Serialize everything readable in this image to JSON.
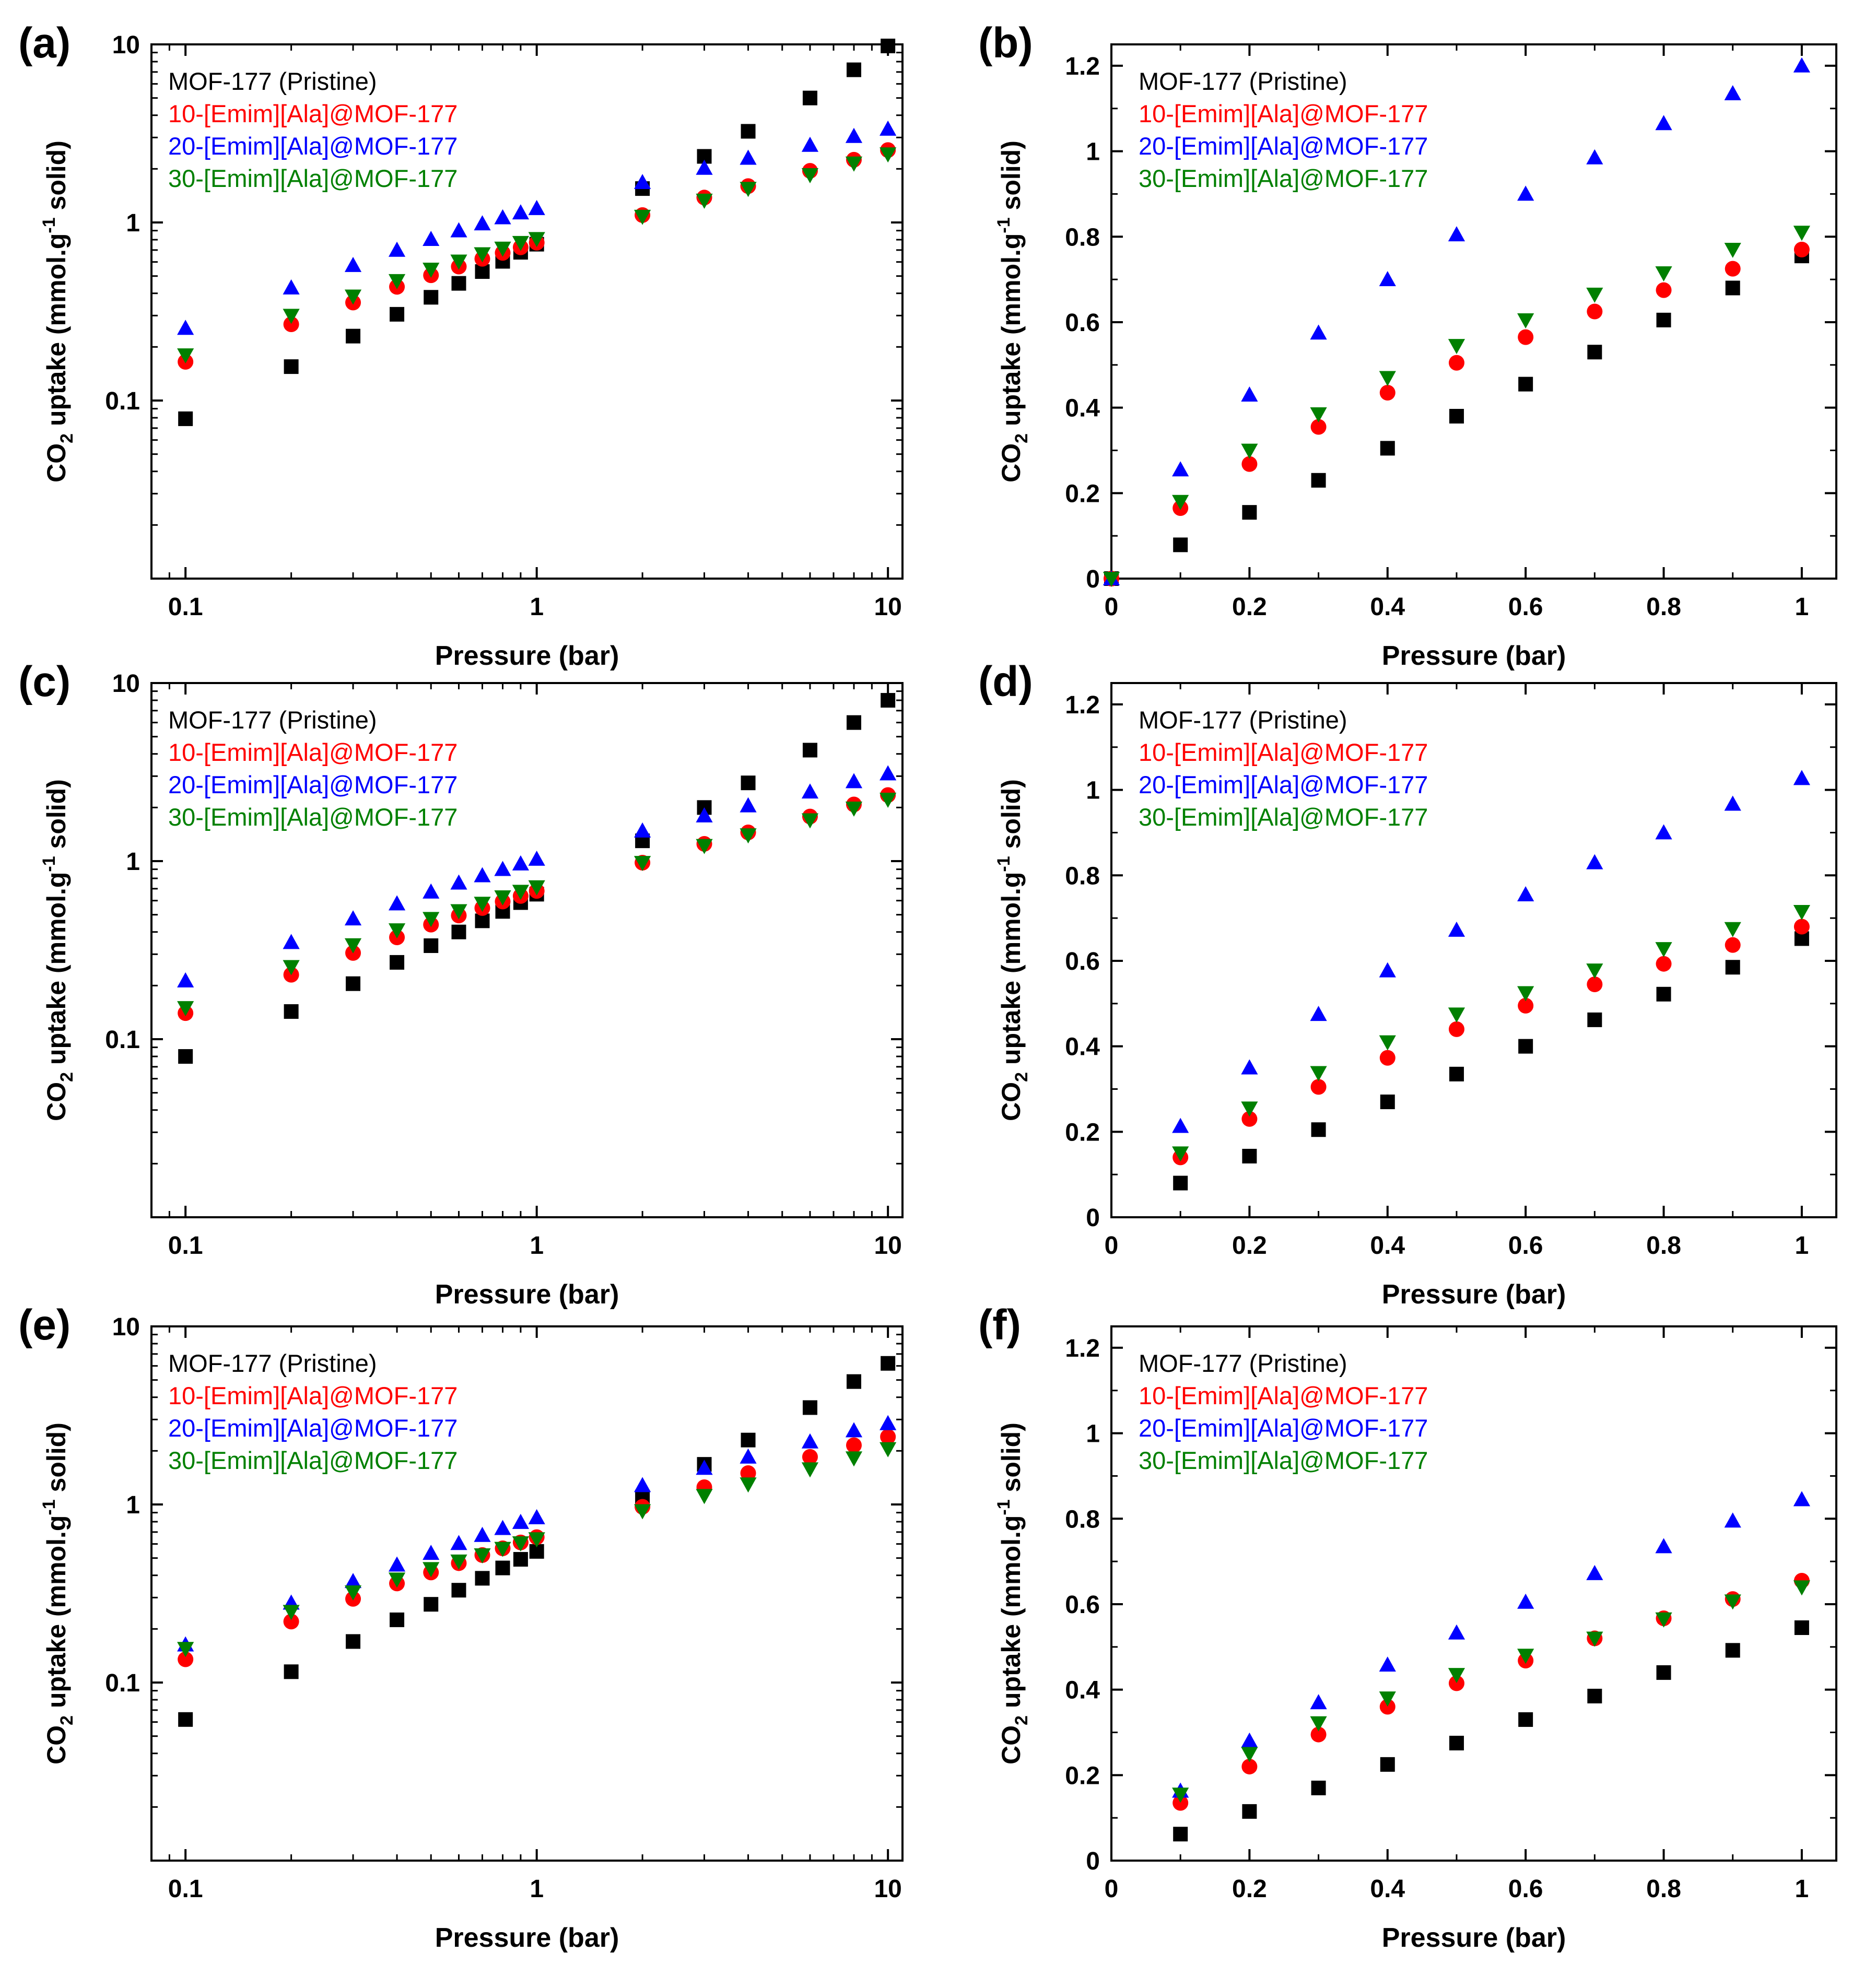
{
  "figure": {
    "xlabel": "Pressure (bar)",
    "ylabel_main": "CO",
    "ylabel_sub2": "2",
    "ylabel_mid": " uptake (mmol.g",
    "ylabel_sup": "-1",
    "ylabel_end": " solid)",
    "colors": {
      "pristine": "#000000",
      "ila10": "#ff0000",
      "ila20": "#0000ff",
      "ila30": "#008000"
    },
    "legend": [
      "MOF-177 (Pristine)",
      "10-[Emim][Ala]@MOF-177",
      "20-[Emim][Ala]@MOF-177",
      "30-[Emim][Ala]@MOF-177"
    ]
  },
  "chart_data": [
    {
      "panel": "(a)",
      "type": "scatter",
      "xscale": "log",
      "yscale": "log",
      "xlim": [
        0.08,
        11
      ],
      "ylim": [
        0.01,
        10
      ],
      "xticks": [
        0.1,
        1,
        10
      ],
      "xtick_labels": [
        "0.1",
        "1",
        "10"
      ],
      "yticks": [
        0.1,
        1,
        10
      ],
      "ytick_labels": [
        "0.1",
        "1",
        "10"
      ],
      "xlabel": "Pressure (bar)",
      "x": [
        0.1,
        0.2,
        0.3,
        0.4,
        0.5,
        0.6,
        0.7,
        0.8,
        0.9,
        1,
        2,
        3,
        4,
        6,
        8,
        10
      ],
      "series": [
        {
          "name": "MOF-177 (Pristine)",
          "marker": "square",
          "color": "#000000",
          "values": [
            0.079,
            0.155,
            0.23,
            0.305,
            0.38,
            0.455,
            0.53,
            0.605,
            0.68,
            0.755,
            1.55,
            2.35,
            3.25,
            5.0,
            7.2,
            9.8
          ]
        },
        {
          "name": "10-[Emim][Ala]@MOF-177",
          "marker": "circle",
          "color": "#ff0000",
          "values": [
            0.165,
            0.268,
            0.355,
            0.435,
            0.505,
            0.565,
            0.625,
            0.675,
            0.725,
            0.77,
            1.1,
            1.38,
            1.6,
            1.95,
            2.25,
            2.55
          ]
        },
        {
          "name": "20-[Emim][Ala]@MOF-177",
          "marker": "triangle-up",
          "color": "#0000ff",
          "values": [
            0.255,
            0.43,
            0.575,
            0.7,
            0.805,
            0.9,
            0.985,
            1.065,
            1.135,
            1.2,
            1.68,
            2.02,
            2.3,
            2.72,
            3.05,
            3.35
          ]
        },
        {
          "name": "30-[Emim][Ala]@MOF-177",
          "marker": "triangle-down",
          "color": "#008000",
          "values": [
            0.18,
            0.3,
            0.385,
            0.47,
            0.545,
            0.605,
            0.665,
            0.715,
            0.77,
            0.81,
            1.08,
            1.33,
            1.55,
            1.85,
            2.15,
            2.42
          ]
        }
      ],
      "legend": [
        "MOF-177 (Pristine)",
        "10-[Emim][Ala]@MOF-177",
        "20-[Emim][Ala]@MOF-177",
        "30-[Emim][Ala]@MOF-177"
      ]
    },
    {
      "panel": "(b)",
      "type": "scatter",
      "xscale": "linear",
      "yscale": "linear",
      "xlim": [
        0,
        1.05
      ],
      "ylim": [
        0,
        1.25
      ],
      "xticks": [
        0,
        0.2,
        0.4,
        0.6,
        0.8,
        1
      ],
      "xtick_labels": [
        "0",
        "0.2",
        "0.4",
        "0.6",
        "0.8",
        "1"
      ],
      "yticks": [
        0,
        0.2,
        0.4,
        0.6,
        0.8,
        1,
        1.2
      ],
      "ytick_labels": [
        "0",
        "0.2",
        "0.4",
        "0.6",
        "0.8",
        "1",
        "1.2"
      ],
      "xlabel": "Pressure (bar)",
      "x": [
        0,
        0.1,
        0.2,
        0.3,
        0.4,
        0.5,
        0.6,
        0.7,
        0.8,
        0.9,
        1
      ],
      "series": [
        {
          "name": "MOF-177 (Pristine)",
          "marker": "square",
          "color": "#000000",
          "values": [
            0,
            0.079,
            0.155,
            0.23,
            0.305,
            0.38,
            0.455,
            0.53,
            0.605,
            0.68,
            0.755
          ]
        },
        {
          "name": "10-[Emim][Ala]@MOF-177",
          "marker": "circle",
          "color": "#ff0000",
          "values": [
            0,
            0.165,
            0.268,
            0.355,
            0.435,
            0.505,
            0.565,
            0.625,
            0.675,
            0.725,
            0.77
          ]
        },
        {
          "name": "20-[Emim][Ala]@MOF-177",
          "marker": "triangle-up",
          "color": "#0000ff",
          "values": [
            0,
            0.255,
            0.43,
            0.575,
            0.7,
            0.805,
            0.9,
            0.985,
            1.065,
            1.135,
            1.2
          ]
        },
        {
          "name": "30-[Emim][Ala]@MOF-177",
          "marker": "triangle-down",
          "color": "#008000",
          "values": [
            0,
            0.18,
            0.3,
            0.385,
            0.47,
            0.545,
            0.605,
            0.665,
            0.715,
            0.77,
            0.81
          ]
        }
      ],
      "legend": [
        "MOF-177 (Pristine)",
        "10-[Emim][Ala]@MOF-177",
        "20-[Emim][Ala]@MOF-177",
        "30-[Emim][Ala]@MOF-177"
      ]
    },
    {
      "panel": "(c)",
      "type": "scatter",
      "xscale": "log",
      "yscale": "log",
      "xlim": [
        0.08,
        11
      ],
      "ylim": [
        0.01,
        10
      ],
      "xticks": [
        0.1,
        1,
        10
      ],
      "xtick_labels": [
        "0.1",
        "1",
        "10"
      ],
      "yticks": [
        0.1,
        1,
        10
      ],
      "ytick_labels": [
        "0.1",
        "1",
        "10"
      ],
      "xlabel": "Pressure (bar)",
      "x": [
        0.1,
        0.2,
        0.3,
        0.4,
        0.5,
        0.6,
        0.7,
        0.8,
        0.9,
        1,
        2,
        3,
        4,
        6,
        8,
        10
      ],
      "series": [
        {
          "name": "MOF-177 (Pristine)",
          "marker": "square",
          "color": "#000000",
          "values": [
            0.08,
            0.143,
            0.205,
            0.27,
            0.335,
            0.4,
            0.462,
            0.522,
            0.585,
            0.652,
            1.3,
            2.0,
            2.75,
            4.2,
            6.0,
            8.0
          ]
        },
        {
          "name": "10-[Emim][Ala]@MOF-177",
          "marker": "circle",
          "color": "#ff0000",
          "values": [
            0.14,
            0.23,
            0.305,
            0.373,
            0.44,
            0.495,
            0.545,
            0.593,
            0.637,
            0.68,
            0.98,
            1.25,
            1.45,
            1.78,
            2.08,
            2.35
          ]
        },
        {
          "name": "20-[Emim][Ala]@MOF-177",
          "marker": "triangle-up",
          "color": "#0000ff",
          "values": [
            0.213,
            0.35,
            0.475,
            0.577,
            0.672,
            0.755,
            0.83,
            0.9,
            0.967,
            1.027,
            1.48,
            1.8,
            2.05,
            2.45,
            2.8,
            3.1
          ]
        },
        {
          "name": "30-[Emim][Ala]@MOF-177",
          "marker": "triangle-down",
          "color": "#008000",
          "values": [
            0.15,
            0.255,
            0.338,
            0.41,
            0.475,
            0.525,
            0.578,
            0.628,
            0.675,
            0.715,
            0.98,
            1.22,
            1.4,
            1.7,
            1.98,
            2.22
          ]
        }
      ],
      "legend": [
        "MOF-177 (Pristine)",
        "10-[Emim][Ala]@MOF-177",
        "20-[Emim][Ala]@MOF-177",
        "30-[Emim][Ala]@MOF-177"
      ]
    },
    {
      "panel": "(d)",
      "type": "scatter",
      "xscale": "linear",
      "yscale": "linear",
      "xlim": [
        0,
        1.05
      ],
      "ylim": [
        0,
        1.25
      ],
      "xticks": [
        0,
        0.2,
        0.4,
        0.6,
        0.8,
        1
      ],
      "xtick_labels": [
        "0",
        "0.2",
        "0.4",
        "0.6",
        "0.8",
        "1"
      ],
      "yticks": [
        0,
        0.2,
        0.4,
        0.6,
        0.8,
        1,
        1.2
      ],
      "ytick_labels": [
        "0",
        "0.2",
        "0.4",
        "0.6",
        "0.8",
        "1",
        "1.2"
      ],
      "xlabel": "Pressure (bar)",
      "x": [
        0.1,
        0.2,
        0.3,
        0.4,
        0.5,
        0.6,
        0.7,
        0.8,
        0.9,
        1
      ],
      "series": [
        {
          "name": "MOF-177 (Pristine)",
          "marker": "square",
          "color": "#000000",
          "values": [
            0.08,
            0.143,
            0.205,
            0.27,
            0.335,
            0.4,
            0.462,
            0.522,
            0.585,
            0.652
          ]
        },
        {
          "name": "10-[Emim][Ala]@MOF-177",
          "marker": "circle",
          "color": "#ff0000",
          "values": [
            0.14,
            0.23,
            0.305,
            0.373,
            0.44,
            0.495,
            0.545,
            0.593,
            0.637,
            0.68
          ]
        },
        {
          "name": "20-[Emim][Ala]@MOF-177",
          "marker": "triangle-up",
          "color": "#0000ff",
          "values": [
            0.213,
            0.35,
            0.475,
            0.577,
            0.672,
            0.755,
            0.83,
            0.9,
            0.967,
            1.027
          ]
        },
        {
          "name": "30-[Emim][Ala]@MOF-177",
          "marker": "triangle-down",
          "color": "#008000",
          "values": [
            0.15,
            0.255,
            0.338,
            0.41,
            0.475,
            0.525,
            0.578,
            0.628,
            0.675,
            0.715
          ]
        }
      ],
      "legend": [
        "MOF-177 (Pristine)",
        "10-[Emim][Ala]@MOF-177",
        "20-[Emim][Ala]@MOF-177",
        "30-[Emim][Ala]@MOF-177"
      ]
    },
    {
      "panel": "(e)",
      "type": "scatter",
      "xscale": "log",
      "yscale": "log",
      "xlim": [
        0.08,
        11
      ],
      "ylim": [
        0.01,
        10
      ],
      "xticks": [
        0.1,
        1,
        10
      ],
      "xtick_labels": [
        "0.1",
        "1",
        "10"
      ],
      "yticks": [
        0.1,
        1,
        10
      ],
      "ytick_labels": [
        "0.1",
        "1",
        "10"
      ],
      "xlabel": "Pressure (bar)",
      "x": [
        0.1,
        0.2,
        0.3,
        0.4,
        0.5,
        0.6,
        0.7,
        0.8,
        0.9,
        1,
        2,
        3,
        4,
        6,
        8,
        10
      ],
      "series": [
        {
          "name": "MOF-177 (Pristine)",
          "marker": "square",
          "color": "#000000",
          "values": [
            0.062,
            0.115,
            0.17,
            0.225,
            0.275,
            0.33,
            0.385,
            0.44,
            0.492,
            0.545,
            1.1,
            1.68,
            2.3,
            3.5,
            4.9,
            6.2
          ]
        },
        {
          "name": "10-[Emim][Ala]@MOF-177",
          "marker": "circle",
          "color": "#ff0000",
          "values": [
            0.135,
            0.22,
            0.295,
            0.36,
            0.415,
            0.468,
            0.52,
            0.567,
            0.612,
            0.655,
            0.97,
            1.25,
            1.5,
            1.85,
            2.15,
            2.4
          ]
        },
        {
          "name": "20-[Emim][Ala]@MOF-177",
          "marker": "triangle-up",
          "color": "#0000ff",
          "values": [
            0.163,
            0.28,
            0.37,
            0.458,
            0.533,
            0.605,
            0.672,
            0.735,
            0.795,
            0.845,
            1.28,
            1.6,
            1.85,
            2.25,
            2.6,
            2.85
          ]
        },
        {
          "name": "30-[Emim][Ala]@MOF-177",
          "marker": "triangle-down",
          "color": "#008000",
          "values": [
            0.155,
            0.25,
            0.322,
            0.38,
            0.435,
            0.48,
            0.52,
            0.565,
            0.607,
            0.64,
            0.92,
            1.12,
            1.3,
            1.58,
            1.82,
            2.05
          ]
        }
      ],
      "legend": [
        "MOF-177 (Pristine)",
        "10-[Emim][Ala]@MOF-177",
        "20-[Emim][Ala]@MOF-177",
        "30-[Emim][Ala]@MOF-177"
      ]
    },
    {
      "panel": "(f)",
      "type": "scatter",
      "xscale": "linear",
      "yscale": "linear",
      "xlim": [
        0,
        1.05
      ],
      "ylim": [
        0,
        1.25
      ],
      "xticks": [
        0,
        0.2,
        0.4,
        0.6,
        0.8,
        1
      ],
      "xtick_labels": [
        "0",
        "0.2",
        "0.4",
        "0.6",
        "0.8",
        "1"
      ],
      "yticks": [
        0,
        0.2,
        0.4,
        0.6,
        0.8,
        1,
        1.2
      ],
      "ytick_labels": [
        "0",
        "0.2",
        "0.4",
        "0.6",
        "0.8",
        "1",
        "1.2"
      ],
      "xlabel": "Pressure (bar)",
      "x": [
        0.1,
        0.2,
        0.3,
        0.4,
        0.5,
        0.6,
        0.7,
        0.8,
        0.9,
        1
      ],
      "series": [
        {
          "name": "MOF-177 (Pristine)",
          "marker": "square",
          "color": "#000000",
          "values": [
            0.062,
            0.115,
            0.17,
            0.225,
            0.275,
            0.33,
            0.385,
            0.44,
            0.492,
            0.545
          ]
        },
        {
          "name": "10-[Emim][Ala]@MOF-177",
          "marker": "circle",
          "color": "#ff0000",
          "values": [
            0.135,
            0.22,
            0.295,
            0.36,
            0.415,
            0.468,
            0.52,
            0.567,
            0.612,
            0.655
          ]
        },
        {
          "name": "20-[Emim][Ala]@MOF-177",
          "marker": "triangle-up",
          "color": "#0000ff",
          "values": [
            0.163,
            0.28,
            0.37,
            0.458,
            0.533,
            0.605,
            0.672,
            0.735,
            0.795,
            0.845
          ]
        },
        {
          "name": "30-[Emim][Ala]@MOF-177",
          "marker": "triangle-down",
          "color": "#008000",
          "values": [
            0.155,
            0.25,
            0.322,
            0.38,
            0.435,
            0.48,
            0.52,
            0.565,
            0.607,
            0.64
          ]
        }
      ],
      "legend": [
        "MOF-177 (Pristine)",
        "10-[Emim][Ala]@MOF-177",
        "20-[Emim][Ala]@MOF-177",
        "30-[Emim][Ala]@MOF-177"
      ]
    }
  ]
}
